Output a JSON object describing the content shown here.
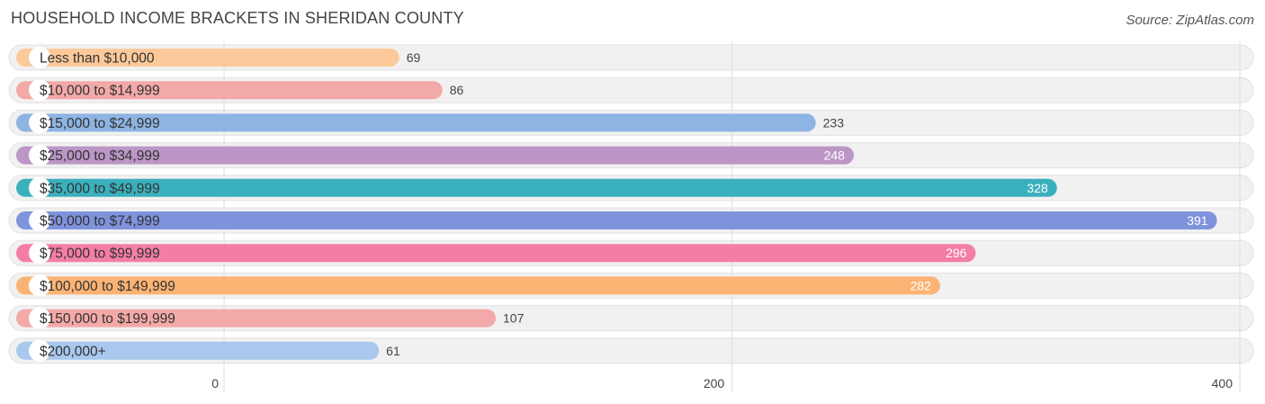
{
  "header": {
    "title": "HOUSEHOLD INCOME BRACKETS IN SHERIDAN COUNTY",
    "source": "Source: ZipAtlas.com"
  },
  "chart_data": {
    "type": "bar",
    "orientation": "horizontal",
    "title": "HOUSEHOLD INCOME BRACKETS IN SHERIDAN COUNTY",
    "xlabel": "",
    "ylabel": "",
    "xlim": [
      0,
      400
    ],
    "ticks": [
      0,
      200,
      400
    ],
    "tick_labels": [
      "0",
      "200",
      "400"
    ],
    "grid": true,
    "categories": [
      "Less than $10,000",
      "$10,000 to $14,999",
      "$15,000 to $24,999",
      "$25,000 to $34,999",
      "$35,000 to $49,999",
      "$50,000 to $74,999",
      "$75,000 to $99,999",
      "$100,000 to $149,999",
      "$150,000 to $199,999",
      "$200,000+"
    ],
    "values": [
      69,
      86,
      233,
      248,
      328,
      391,
      296,
      282,
      107,
      61
    ],
    "value_labels": [
      "69",
      "86",
      "233",
      "248",
      "328",
      "391",
      "296",
      "282",
      "107",
      "61"
    ],
    "colors": [
      "#fbc99a",
      "#f3a9a8",
      "#8db4e2",
      "#bb96c6",
      "#3bb0bd",
      "#7f93dd",
      "#f47ea3",
      "#fbb374",
      "#f3a9a8",
      "#a8c8ee"
    ]
  }
}
